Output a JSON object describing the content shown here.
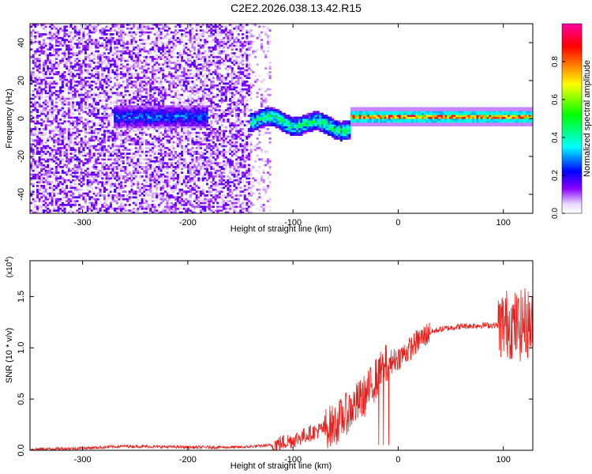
{
  "title": "C2E2.2026.038.13.42.R15",
  "chart_data": [
    {
      "type": "heatmap",
      "xlabel": "Height of straight line (km)",
      "ylabel": "Frequency (Hz)",
      "xlim": [
        -350,
        128
      ],
      "ylim": [
        -50,
        50
      ],
      "xticks": [
        -300,
        -200,
        -100,
        0,
        100
      ],
      "yticks": [
        -40,
        -20,
        0,
        20,
        40
      ],
      "colorbar": {
        "label": "Normalized spectral amplitude",
        "range": [
          0,
          1
        ],
        "ticks": [
          "0.0",
          "0.2",
          "0.4",
          "0.6",
          "0.8"
        ],
        "colormap": [
          "#ffffff",
          "#8a00ff",
          "#0000ff",
          "#00ffff",
          "#00ff00",
          "#ffff00",
          "#ff7f00",
          "#ff0000",
          "#ff00a0"
        ]
      },
      "segments": [
        {
          "x_range": [
            -350,
            -270
          ],
          "description_level": "noise",
          "amplitude": 0.15
        },
        {
          "x_range": [
            -270,
            -180
          ],
          "description_level": "band",
          "amplitude": 0.3,
          "band_halfwidth_hz": 6
        },
        {
          "x_range": [
            -180,
            -140
          ],
          "description_level": "noise",
          "amplitude": 0.15
        },
        {
          "x_range": [
            -140,
            -45
          ],
          "description_level": "band",
          "amplitude": 0.5,
          "band_halfwidth_hz": 5
        },
        {
          "x_range": [
            -45,
            128
          ],
          "description_level": "line",
          "amplitude": 0.8,
          "band_halfwidth_hz": 2
        }
      ]
    },
    {
      "type": "line",
      "xlabel": "Height of straight line (km)",
      "ylabel": "SNR (10 * v/v)",
      "multiplier": "(x10",
      "exponent": "4",
      "multiplier_close": ")",
      "xlim": [
        -350,
        128
      ],
      "ylim": [
        0,
        1.85
      ],
      "xticks": [
        -300,
        -200,
        -100,
        0,
        100
      ],
      "yticks": [
        "0.0",
        "0.5",
        "1.0",
        "1.5"
      ],
      "color": "#e8201c",
      "x": [
        -350,
        -300,
        -260,
        -200,
        -150,
        -120,
        -100,
        -80,
        -60,
        -45,
        -30,
        -20,
        -10,
        0,
        10,
        20,
        30,
        40,
        60,
        80,
        95,
        105,
        115,
        120,
        128
      ],
      "y": [
        0.01,
        0.02,
        0.04,
        0.03,
        0.03,
        0.05,
        0.1,
        0.18,
        0.25,
        0.4,
        0.55,
        0.72,
        0.85,
        0.9,
        0.98,
        1.08,
        1.15,
        1.18,
        1.21,
        1.22,
        1.22,
        1.24,
        1.2,
        1.25,
        1.22
      ]
    }
  ]
}
